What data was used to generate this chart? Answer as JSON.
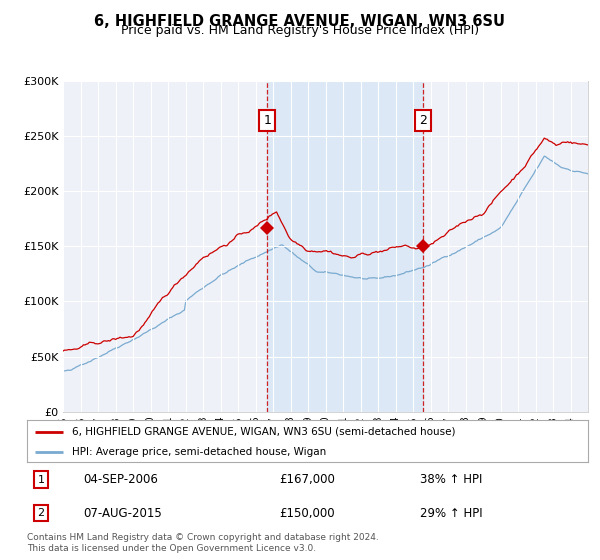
{
  "title": "6, HIGHFIELD GRANGE AVENUE, WIGAN, WN3 6SU",
  "subtitle": "Price paid vs. HM Land Registry's House Price Index (HPI)",
  "red_label": "6, HIGHFIELD GRANGE AVENUE, WIGAN, WN3 6SU (semi-detached house)",
  "blue_label": "HPI: Average price, semi-detached house, Wigan",
  "annotation1_date": "04-SEP-2006",
  "annotation1_price": "£167,000",
  "annotation1_hpi": "38% ↑ HPI",
  "annotation2_date": "07-AUG-2015",
  "annotation2_price": "£150,000",
  "annotation2_hpi": "29% ↑ HPI",
  "footer": "Contains HM Land Registry data © Crown copyright and database right 2024.\nThis data is licensed under the Open Government Licence v3.0.",
  "red_color": "#cc0000",
  "blue_color": "#7aaad0",
  "vline_color": "#cc0000",
  "annotation_box_color": "#cc0000",
  "background_color": "#ffffff",
  "plot_bg_color": "#eef2f8",
  "shade_color": "#dce8f5",
  "ylim": [
    0,
    300000
  ],
  "yticks": [
    0,
    50000,
    100000,
    150000,
    200000,
    250000,
    300000
  ],
  "ytick_labels": [
    "£0",
    "£50K",
    "£100K",
    "£150K",
    "£200K",
    "£250K",
    "£300K"
  ],
  "vline1_year": 2006.67,
  "vline2_year": 2015.58,
  "sale1_year": 2006.67,
  "sale1_price": 167000,
  "sale2_year": 2015.58,
  "sale2_price": 150000
}
